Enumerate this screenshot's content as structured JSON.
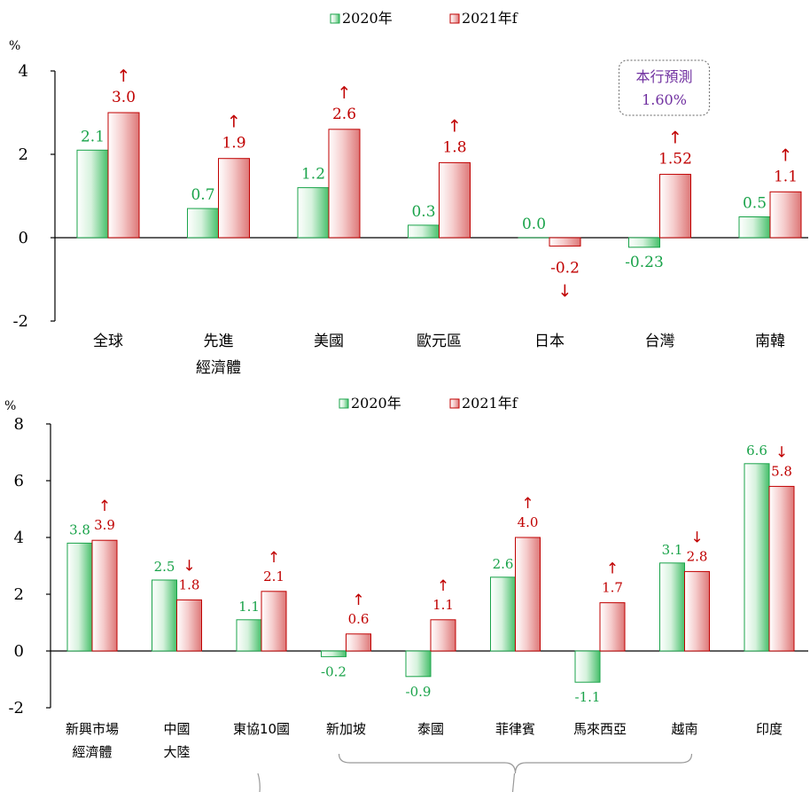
{
  "colors": {
    "green": "#1aa34a",
    "red": "#c00000",
    "purple": "#7030a0",
    "axis": "#000000",
    "bracket": "#999999"
  },
  "chart_data": [
    {
      "type": "bar",
      "unit": "%",
      "ylim": [
        -2,
        4
      ],
      "yticks": [
        "-2",
        "0",
        "2",
        "4"
      ],
      "legend_placement": "top",
      "categories": [
        "全球",
        "先進\n經濟體",
        "美國",
        "歐元區",
        "日本",
        "台灣",
        "南韓"
      ],
      "series": [
        {
          "name": "2020年",
          "values": [
            2.1,
            0.7,
            1.2,
            0.3,
            0.0,
            -0.23,
            0.5
          ],
          "labels": [
            "2.1",
            "0.7",
            "1.2",
            "0.3",
            "0.0",
            "-0.23",
            "0.5"
          ]
        },
        {
          "name": "2021年f",
          "values": [
            3.0,
            1.9,
            2.6,
            1.8,
            -0.2,
            1.52,
            1.1
          ],
          "labels": [
            "3.0",
            "1.9",
            "2.6",
            "1.8",
            "-0.2",
            "1.52",
            "1.1"
          ],
          "arrows": [
            "↑",
            "↑",
            "↑",
            "↑",
            "↓",
            "↑",
            "↑"
          ]
        }
      ],
      "annotation": {
        "title": "本行預測",
        "value": "1.60%",
        "category": "台灣"
      }
    },
    {
      "type": "bar",
      "unit": "%",
      "ylim": [
        -2,
        8
      ],
      "yticks": [
        "-2",
        "0",
        "2",
        "4",
        "6",
        "8"
      ],
      "legend_placement": "top",
      "categories": [
        "新興市場\n經濟體",
        "中國\n大陸",
        "東協10國",
        "新加坡",
        "泰國",
        "菲律賓",
        "馬來西亞",
        "越南",
        "印度"
      ],
      "series": [
        {
          "name": "2020年",
          "values": [
            3.8,
            2.5,
            1.1,
            -0.2,
            -0.9,
            2.6,
            -1.1,
            3.1,
            6.6
          ],
          "labels": [
            "3.8",
            "2.5",
            "1.1",
            "-0.2",
            "-0.9",
            "2.6",
            "-1.1",
            "3.1",
            "6.6"
          ]
        },
        {
          "name": "2021年f",
          "values": [
            3.9,
            1.8,
            2.1,
            0.6,
            1.1,
            4.0,
            1.7,
            2.8,
            5.8
          ],
          "labels": [
            "3.9",
            "1.8",
            "2.1",
            "0.6",
            "1.1",
            "4.0",
            "1.7",
            "2.8",
            "5.8"
          ],
          "arrows": [
            "↑",
            "↓",
            "↑",
            "↑",
            "↑",
            "↑",
            "↑",
            "↓",
            "↓"
          ]
        }
      ],
      "bracket": {
        "from": "新加坡",
        "to": "越南",
        "points_to": "東協10國"
      }
    }
  ]
}
